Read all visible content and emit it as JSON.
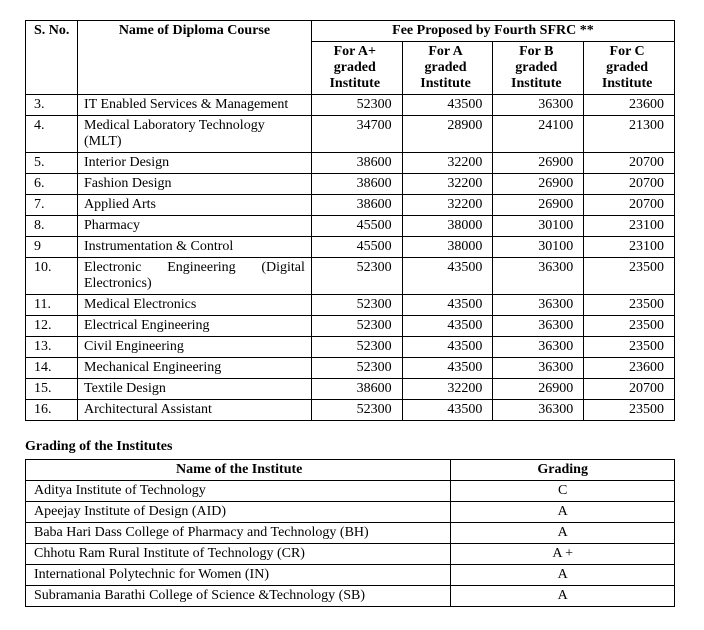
{
  "feeTable": {
    "headers": {
      "sno": "S. No.",
      "course": "Name of Diploma Course",
      "feeGroup": "Fee Proposed by Fourth SFRC **",
      "colA": "For A+ graded Institute",
      "colB": "For A graded Institute",
      "colC": "For B graded Institute",
      "colD": "For C graded Institute"
    },
    "rows": [
      {
        "sno": "3.",
        "course": "IT Enabled Services & Management",
        "a": "52300",
        "b": "43500",
        "c": "36300",
        "d": "23600"
      },
      {
        "sno": "4.",
        "course": "Medical Laboratory Technology (MLT)",
        "a": "34700",
        "b": "28900",
        "c": "24100",
        "d": "21300"
      },
      {
        "sno": "5.",
        "course": "Interior Design",
        "a": "38600",
        "b": "32200",
        "c": "26900",
        "d": "20700"
      },
      {
        "sno": "6.",
        "course": "Fashion Design",
        "a": "38600",
        "b": "32200",
        "c": "26900",
        "d": "20700"
      },
      {
        "sno": "7.",
        "course": "Applied Arts",
        "a": "38600",
        "b": "32200",
        "c": "26900",
        "d": "20700"
      },
      {
        "sno": "8.",
        "course": "Pharmacy",
        "a": "45500",
        "b": "38000",
        "c": "30100",
        "d": "23100"
      },
      {
        "sno": "9",
        "course": "Instrumentation & Control",
        "a": "45500",
        "b": "38000",
        "c": "30100",
        "d": "23100"
      },
      {
        "sno": "10.",
        "course": "Electronic Engineering (Digital Electronics)",
        "a": "52300",
        "b": "43500",
        "c": "36300",
        "d": "23500",
        "justify": true
      },
      {
        "sno": "11.",
        "course": "Medical Electronics",
        "a": "52300",
        "b": "43500",
        "c": "36300",
        "d": "23500"
      },
      {
        "sno": "12.",
        "course": "Electrical Engineering",
        "a": "52300",
        "b": "43500",
        "c": "36300",
        "d": "23500"
      },
      {
        "sno": "13.",
        "course": "Civil Engineering",
        "a": "52300",
        "b": "43500",
        "c": "36300",
        "d": "23500"
      },
      {
        "sno": "14.",
        "course": "Mechanical Engineering",
        "a": "52300",
        "b": "43500",
        "c": "36300",
        "d": "23600"
      },
      {
        "sno": "15.",
        "course": "Textile Design",
        "a": "38600",
        "b": "32200",
        "c": "26900",
        "d": "20700"
      },
      {
        "sno": "16.",
        "course": "Architectural Assistant",
        "a": "52300",
        "b": "43500",
        "c": "36300",
        "d": "23500"
      }
    ]
  },
  "gradingSection": {
    "title": "Grading of the Institutes",
    "headers": {
      "name": "Name of the Institute",
      "grade": "Grading"
    },
    "rows": [
      {
        "name": "Aditya Institute of Technology",
        "grade": "C"
      },
      {
        "name": "Apeejay Institute of Design (AID)",
        "grade": "A"
      },
      {
        "name": "Baba Hari Dass College of Pharmacy and Technology (BH)",
        "grade": "A"
      },
      {
        "name": "Chhotu Ram Rural Institute of Technology (CR)",
        "grade": "A +"
      },
      {
        "name": "International Polytechnic for Women (IN)",
        "grade": "A"
      },
      {
        "name": "Subramania Barathi College of Science &Technology (SB)",
        "grade": "A"
      }
    ]
  }
}
